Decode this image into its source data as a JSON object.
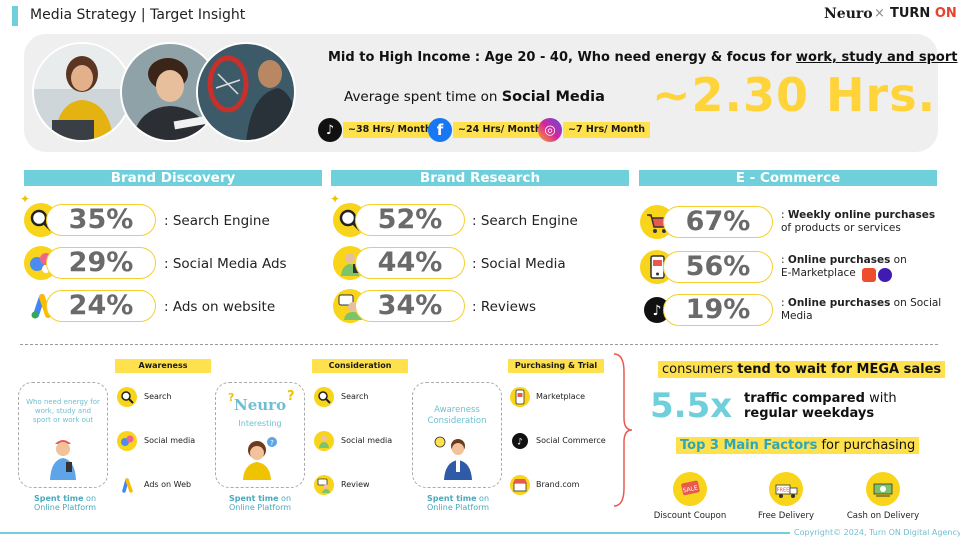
{
  "header": {
    "title": "Media Strategy | Target Insight",
    "logo_neuro": "Neuro",
    "logo_x": "×",
    "logo_turn": "TURN ",
    "logo_on": "ON"
  },
  "hero": {
    "headline_pre": "Mid to High Income : Age 20 - 40, Who need energy & focus for ",
    "headline_link": "work, study and sport",
    "avg_pre": "Average spent time on ",
    "avg_bold": "Social Media",
    "big_value": "~2.30 Hrs.",
    "platforms": [
      {
        "icon": "tiktok-icon",
        "label": "~38 Hrs/ Month",
        "color": "#111111"
      },
      {
        "icon": "facebook-icon",
        "label": "~24 Hrs/ Month",
        "color": "#1877f2"
      },
      {
        "icon": "instagram-icon",
        "label": "~7 Hrs/ Month",
        "color": "#d6249f"
      }
    ]
  },
  "sections": {
    "discovery": {
      "title": "Brand Discovery",
      "rows": [
        {
          "value": "35%",
          "label": ": Search Engine"
        },
        {
          "value": "29%",
          "label": ": Social Media Ads"
        },
        {
          "value": "24%",
          "label": ": Ads on website"
        }
      ]
    },
    "research": {
      "title": "Brand Research",
      "rows": [
        {
          "value": "52%",
          "label": ": Search Engine"
        },
        {
          "value": "44%",
          "label": ": Social Media"
        },
        {
          "value": "34%",
          "label": ": Reviews"
        }
      ]
    },
    "ecommerce": {
      "title": "E - Commerce",
      "rows": [
        {
          "value": "67%",
          "bold": "Weekly online purchases",
          "rest": "of products or services"
        },
        {
          "value": "56%",
          "bold": "Online purchases",
          "rest_inline": " on",
          "rest": "E-Marketplace"
        },
        {
          "value": "19%",
          "bold": "Online purchases",
          "rest_inline": " on Social",
          "rest": "Media"
        }
      ]
    }
  },
  "funnel": {
    "awareness": {
      "stage": "Awareness",
      "box_text": "Who need energy for work, study and sport or work out",
      "spent_bold": "Spent time",
      "spent_rest": " on",
      "spent_line2": "Online Platform",
      "items": [
        "Search",
        "Social media",
        "Ads on Web"
      ]
    },
    "consideration": {
      "stage": "Consideration",
      "box_brand": "Neuro",
      "box_text": "Interesting",
      "spent_bold": "Spent time",
      "spent_rest": " on",
      "spent_line2": "Online Platform",
      "items": [
        "Search",
        "Social media",
        "Review"
      ]
    },
    "purchasing": {
      "stage": "Purchasing & Trial",
      "box_text": "Awareness Consideration",
      "spent_bold": "Spent time",
      "spent_rest": " on",
      "spent_line2": "Online Platform",
      "items": [
        "Marketplace",
        "Social Commerce",
        "Brand.com"
      ]
    }
  },
  "insights": {
    "mega_pre": "consumers ",
    "mega_bold": "tend to wait for MEGA sales",
    "multiplier": "5.5x",
    "multiplier_bold": "traffic compared",
    "multiplier_rest": " with",
    "multiplier_line2": "regular weekdays",
    "top3_bold": "Top 3 Main Factors",
    "top3_rest": " for purchasing",
    "factors": [
      "Discount Coupon",
      "Free Delivery",
      "Cash on Delivery"
    ]
  },
  "footer": {
    "copyright": "Copyright© 2024, Turn ON Digital Agency"
  },
  "colors": {
    "accent_teal": "#6fd0dc",
    "accent_yellow": "#ffe14d",
    "turn_on_red": "#e8412c"
  }
}
